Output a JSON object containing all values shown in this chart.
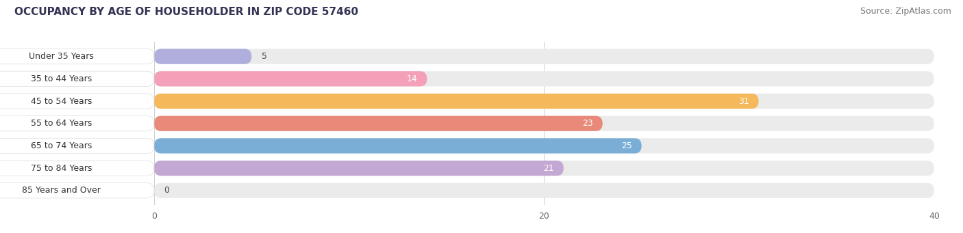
{
  "title": "OCCUPANCY BY AGE OF HOUSEHOLDER IN ZIP CODE 57460",
  "source": "Source: ZipAtlas.com",
  "categories": [
    "Under 35 Years",
    "35 to 44 Years",
    "45 to 54 Years",
    "55 to 64 Years",
    "65 to 74 Years",
    "75 to 84 Years",
    "85 Years and Over"
  ],
  "values": [
    5,
    14,
    31,
    23,
    25,
    21,
    0
  ],
  "bar_colors": [
    "#b0aedd",
    "#f4a0b8",
    "#f5b85a",
    "#e8897a",
    "#7aaed6",
    "#c4a8d4",
    "#7dd6d1"
  ],
  "bar_bg_color": "#ebebeb",
  "xlim": [
    0,
    40
  ],
  "xticks": [
    0,
    20,
    40
  ],
  "title_fontsize": 11,
  "source_fontsize": 9,
  "label_fontsize": 9,
  "value_fontsize": 9,
  "bar_height": 0.68,
  "bg_color": "#ffffff",
  "label_color": "#333333",
  "value_color_inside": "#ffffff",
  "value_color_outside": "#444444",
  "label_box_color": "#ffffff",
  "label_box_border": "#dddddd"
}
